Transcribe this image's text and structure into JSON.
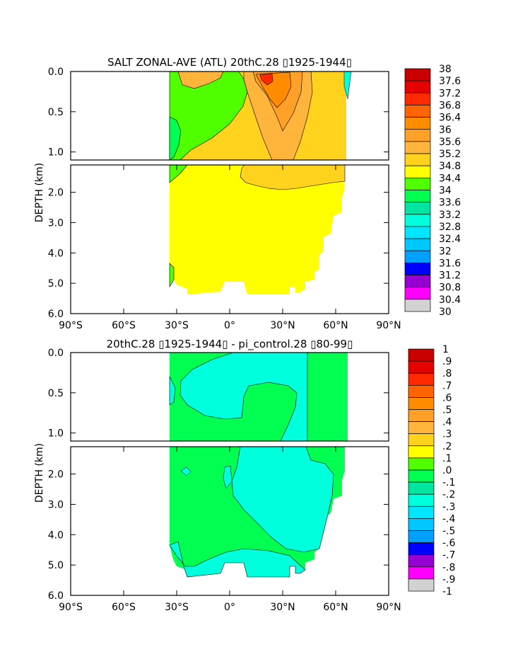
{
  "chart_data": [
    {
      "type": "heatmap",
      "title": "SALT ZONAL-AVE (ATL) 20thC.28 ▯1925-1944▯",
      "xlabel": "",
      "ylabel": "DEPTH (km)",
      "x_ticks": [
        "90°S",
        "60°S",
        "30°S",
        "0°",
        "30°N",
        "60°N",
        "90°N"
      ],
      "x_tick_values": [
        -90,
        -60,
        -30,
        0,
        30,
        60,
        90
      ],
      "y_ticks_upper": [
        "0.0",
        "0.5",
        "1.0"
      ],
      "y_ticks_upper_values": [
        0,
        0.5,
        1.0
      ],
      "y_ticks_lower": [
        "2.0",
        "3.0",
        "4.0",
        "5.0",
        "6.0"
      ],
      "y_ticks_lower_values": [
        2,
        3,
        4,
        5,
        6
      ],
      "xlim": [
        -90,
        90
      ],
      "ylim_upper": [
        0,
        1.1
      ],
      "ylim_lower": [
        1.1,
        6.0
      ],
      "colorbar": {
        "labels": [
          "38",
          "37.6",
          "37.2",
          "36.8",
          "36.4",
          "36",
          "35.6",
          "35.2",
          "34.8",
          "34.4",
          "34",
          "33.6",
          "33.2",
          "32.8",
          "32.4",
          "32",
          "31.6",
          "31.2",
          "30.8",
          "30.4",
          "30"
        ],
        "colors": [
          "#c80000",
          "#e60000",
          "#ff2a00",
          "#ff6400",
          "#ff8c00",
          "#ffa028",
          "#ffb43c",
          "#ffd21e",
          "#ffff00",
          "#50ff00",
          "#00ff50",
          "#00e6a0",
          "#00ffdc",
          "#00e6ff",
          "#00c8ff",
          "#00a0ff",
          "#0000ff",
          "#9600d2",
          "#ff00ff",
          "#d2d2d2",
          "#787878"
        ]
      }
    },
    {
      "type": "heatmap",
      "title": "20thC.28 ▯1925-1944▯ - pi_control.28 ▯80-99▯",
      "xlabel": "",
      "ylabel": "DEPTH (km)",
      "x_ticks": [
        "90°S",
        "60°S",
        "30°S",
        "0°",
        "30°N",
        "60°N",
        "90°N"
      ],
      "x_tick_values": [
        -90,
        -60,
        -30,
        0,
        30,
        60,
        90
      ],
      "y_ticks_upper": [
        "0.0",
        "0.5",
        "1.0"
      ],
      "y_ticks_upper_values": [
        0,
        0.5,
        1.0
      ],
      "y_ticks_lower": [
        "2.0",
        "3.0",
        "4.0",
        "5.0",
        "6.0"
      ],
      "y_ticks_lower_values": [
        2,
        3,
        4,
        5,
        6
      ],
      "xlim": [
        -90,
        90
      ],
      "ylim_upper": [
        0,
        1.1
      ],
      "ylim_lower": [
        1.1,
        6.0
      ],
      "colorbar": {
        "labels": [
          "1",
          ".9",
          ".8",
          ".7",
          ".6",
          ".5",
          ".4",
          ".3",
          ".2",
          ".1",
          ".0",
          "-.1",
          "-.2",
          "-.3",
          "-.4",
          "-.5",
          "-.6",
          "-.7",
          "-.8",
          "-.9",
          "-1"
        ],
        "colors": [
          "#c80000",
          "#e60000",
          "#ff2a00",
          "#ff6400",
          "#ff8c00",
          "#ffa028",
          "#ffb43c",
          "#ffd21e",
          "#ffff00",
          "#50ff00",
          "#00ff50",
          "#00e6a0",
          "#00ffdc",
          "#00e6ff",
          "#00c8ff",
          "#00a0ff",
          "#0000ff",
          "#9600d2",
          "#ff00ff",
          "#d2d2d2",
          "#787878"
        ]
      }
    }
  ]
}
